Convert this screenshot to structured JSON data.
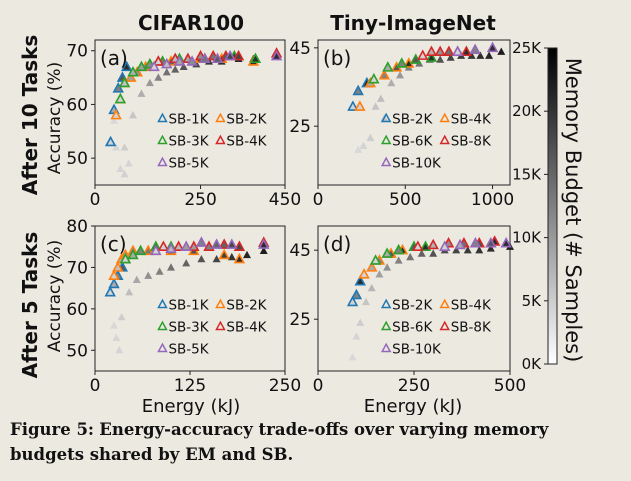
{
  "figure": {
    "column_titles": [
      "CIFAR100",
      "Tiny-ImageNet"
    ],
    "row_titles": [
      "After 10 Tasks",
      "After 5 Tasks"
    ],
    "ylabel": "Accuracy (%)",
    "xlabel": "Energy (kJ)",
    "colorbar": {
      "label": "Memory Budget (# Samples)",
      "ticks": [
        "0K",
        "5K",
        "10K",
        "15K",
        "20K",
        "25K"
      ],
      "range": [
        0,
        25000
      ],
      "colormap": [
        "#ffffff",
        "#000000"
      ]
    }
  },
  "caption": {
    "label": "Figure 5:",
    "text": "Energy-accuracy trade-offs over varying memory budgets shared by EM and SB."
  },
  "chart_data": [
    {
      "id": "a",
      "panel_label": "(a)",
      "type": "scatter",
      "title": "CIFAR100",
      "row": "After 10 Tasks",
      "xlabel": "",
      "ylabel": "Accuracy (%)",
      "xlim": [
        0,
        450
      ],
      "ylim": [
        45,
        72
      ],
      "xticks": [
        "0",
        "250",
        "450"
      ],
      "xtick_values": [
        0,
        250,
        450
      ],
      "yticks": [
        "50",
        "60",
        "70"
      ],
      "ytick_values": [
        50,
        60,
        70
      ],
      "legend": {
        "placement": "bottom-right",
        "columns": 2
      },
      "series": [
        {
          "name": "SB-1K",
          "color": "#1f77b4",
          "points": [
            [
              37,
              53
            ],
            [
              45,
              59
            ],
            [
              55,
              63
            ],
            [
              65,
              65
            ],
            [
              75,
              67
            ]
          ]
        },
        {
          "name": "SB-2K",
          "color": "#ff7f0e",
          "points": [
            [
              50,
              58
            ],
            [
              60,
              61
            ],
            [
              70,
              64
            ],
            [
              85,
              65
            ],
            [
              100,
              66
            ],
            [
              120,
              67
            ],
            [
              150,
              68
            ],
            [
              180,
              68
            ],
            [
              250,
              68.5
            ],
            [
              300,
              68.5
            ],
            [
              375,
              68
            ]
          ]
        },
        {
          "name": "SB-3K",
          "color": "#2ca02c",
          "points": [
            [
              60,
              61
            ],
            [
              70,
              64
            ],
            [
              90,
              66
            ],
            [
              110,
              67
            ],
            [
              130,
              67.5
            ],
            [
              160,
              68
            ],
            [
              200,
              68.5
            ],
            [
              260,
              68.5
            ],
            [
              330,
              69
            ],
            [
              380,
              68.5
            ]
          ]
        },
        {
          "name": "SB-4K",
          "color": "#d62728",
          "points": [
            [
              150,
              68
            ],
            [
              190,
              68.5
            ],
            [
              220,
              68.5
            ],
            [
              250,
              69
            ],
            [
              280,
              69
            ],
            [
              310,
              69
            ],
            [
              340,
              69
            ],
            [
              430,
              69.5
            ]
          ]
        },
        {
          "name": "SB-5K",
          "color": "#9467bd",
          "points": [
            [
              140,
              67
            ],
            [
              170,
              67.5
            ],
            [
              200,
              68
            ],
            [
              230,
              68
            ],
            [
              260,
              68.5
            ],
            [
              290,
              68.5
            ],
            [
              320,
              69
            ],
            [
              430,
              69
            ]
          ]
        }
      ],
      "em_points": [
        {
          "x": 45,
          "y": 57,
          "budget": 500
        },
        {
          "x": 50,
          "y": 52,
          "budget": 800
        },
        {
          "x": 60,
          "y": 48,
          "budget": 1000
        },
        {
          "x": 70,
          "y": 47,
          "budget": 1500
        },
        {
          "x": 70,
          "y": 52,
          "budget": 2000
        },
        {
          "x": 80,
          "y": 49,
          "budget": 1000
        },
        {
          "x": 90,
          "y": 58,
          "budget": 3000
        },
        {
          "x": 110,
          "y": 62,
          "budget": 6000
        },
        {
          "x": 130,
          "y": 64,
          "budget": 9000
        },
        {
          "x": 150,
          "y": 65,
          "budget": 12000
        },
        {
          "x": 170,
          "y": 66,
          "budget": 14000
        },
        {
          "x": 190,
          "y": 66.5,
          "budget": 16000
        },
        {
          "x": 210,
          "y": 67,
          "budget": 18000
        },
        {
          "x": 240,
          "y": 67.5,
          "budget": 20000
        },
        {
          "x": 270,
          "y": 68,
          "budget": 22000
        },
        {
          "x": 300,
          "y": 68,
          "budget": 23000
        },
        {
          "x": 340,
          "y": 68.5,
          "budget": 24000
        },
        {
          "x": 375,
          "y": 68.5,
          "budget": 25000
        }
      ]
    },
    {
      "id": "b",
      "panel_label": "(b)",
      "type": "scatter",
      "title": "Tiny-ImageNet",
      "row": "After 10 Tasks",
      "xlabel": "",
      "ylabel": "",
      "xlim": [
        0,
        1100
      ],
      "ylim": [
        10,
        47
      ],
      "xticks": [
        "0",
        "500",
        "1000"
      ],
      "xtick_values": [
        0,
        500,
        1000
      ],
      "yticks": [
        "25",
        "45"
      ],
      "ytick_values": [
        25,
        45
      ],
      "legend": {
        "placement": "bottom-right",
        "columns": 2
      },
      "series": [
        {
          "name": "SB-2K",
          "color": "#1f77b4",
          "points": [
            [
              200,
              30
            ],
            [
              230,
              34
            ],
            [
              280,
              36
            ]
          ]
        },
        {
          "name": "SB-4K",
          "color": "#ff7f0e",
          "points": [
            [
              240,
              30
            ],
            [
              300,
              36
            ],
            [
              380,
              38
            ],
            [
              450,
              40
            ],
            [
              520,
              41
            ]
          ]
        },
        {
          "name": "SB-6K",
          "color": "#2ca02c",
          "points": [
            [
              320,
              37
            ],
            [
              400,
              40
            ],
            [
              480,
              41
            ],
            [
              560,
              42
            ],
            [
              650,
              42.5
            ]
          ]
        },
        {
          "name": "SB-8K",
          "color": "#d62728",
          "points": [
            [
              600,
              43
            ],
            [
              650,
              44
            ],
            [
              700,
              44
            ],
            [
              750,
              44
            ],
            [
              800,
              44
            ],
            [
              850,
              44
            ]
          ]
        },
        {
          "name": "SB-10K",
          "color": "#9467bd",
          "points": [
            [
              800,
              44
            ],
            [
              900,
              44.5
            ],
            [
              1000,
              45
            ]
          ]
        }
      ],
      "em_points": [
        {
          "x": 230,
          "y": 19,
          "budget": 500
        },
        {
          "x": 260,
          "y": 20,
          "budget": 1000
        },
        {
          "x": 300,
          "y": 22,
          "budget": 2000
        },
        {
          "x": 330,
          "y": 30,
          "budget": 3000
        },
        {
          "x": 360,
          "y": 32,
          "budget": 4000
        },
        {
          "x": 380,
          "y": 27,
          "budget": 3000
        },
        {
          "x": 420,
          "y": 36,
          "budget": 6000
        },
        {
          "x": 470,
          "y": 38,
          "budget": 9000
        },
        {
          "x": 520,
          "y": 40,
          "budget": 12000
        },
        {
          "x": 580,
          "y": 41,
          "budget": 14000
        },
        {
          "x": 640,
          "y": 42,
          "budget": 16000
        },
        {
          "x": 700,
          "y": 42,
          "budget": 18000
        },
        {
          "x": 760,
          "y": 42.5,
          "budget": 20000
        },
        {
          "x": 820,
          "y": 43,
          "budget": 21000
        },
        {
          "x": 880,
          "y": 43,
          "budget": 22000
        },
        {
          "x": 930,
          "y": 43,
          "budget": 23000
        },
        {
          "x": 980,
          "y": 43,
          "budget": 24000
        },
        {
          "x": 1050,
          "y": 44,
          "budget": 25000
        }
      ]
    },
    {
      "id": "c",
      "panel_label": "(c)",
      "type": "scatter",
      "title": "CIFAR100",
      "row": "After 5 Tasks",
      "xlabel": "Energy (kJ)",
      "ylabel": "Accuracy (%)",
      "xlim": [
        0,
        250
      ],
      "ylim": [
        45,
        80
      ],
      "xticks": [
        "0",
        "125",
        "250"
      ],
      "xtick_values": [
        0,
        125,
        250
      ],
      "yticks": [
        "50",
        "60",
        "70",
        "80"
      ],
      "ytick_values": [
        50,
        60,
        70,
        80
      ],
      "legend": {
        "placement": "bottom-right",
        "columns": 2
      },
      "series": [
        {
          "name": "SB-1K",
          "color": "#1f77b4",
          "points": [
            [
              20,
              64
            ],
            [
              25,
              66
            ],
            [
              30,
              68
            ],
            [
              36,
              70
            ],
            [
              40,
              72
            ]
          ]
        },
        {
          "name": "SB-2K",
          "color": "#ff7f0e",
          "points": [
            [
              25,
              68
            ],
            [
              30,
              70
            ],
            [
              35,
              72
            ],
            [
              40,
              73
            ],
            [
              50,
              74
            ],
            [
              70,
              74
            ],
            [
              100,
              74
            ],
            [
              130,
              74
            ],
            [
              170,
              73
            ],
            [
              190,
              72
            ]
          ]
        },
        {
          "name": "SB-3K",
          "color": "#2ca02c",
          "points": [
            [
              40,
              72
            ],
            [
              50,
              73
            ],
            [
              60,
              74
            ],
            [
              80,
              75
            ],
            [
              100,
              75
            ]
          ]
        },
        {
          "name": "SB-4K",
          "color": "#d62728",
          "points": [
            [
              90,
              75
            ],
            [
              110,
              75
            ],
            [
              130,
              75
            ],
            [
              150,
              75
            ],
            [
              170,
              75.5
            ],
            [
              190,
              75
            ],
            [
              222,
              76
            ]
          ]
        },
        {
          "name": "SB-5K",
          "color": "#9467bd",
          "points": [
            [
              80,
              74
            ],
            [
              100,
              74.5
            ],
            [
              120,
              75
            ],
            [
              140,
              76
            ],
            [
              160,
              75.5
            ],
            [
              180,
              75.5
            ],
            [
              222,
              75.5
            ]
          ]
        }
      ],
      "em_points": [
        {
          "x": 25,
          "y": 56,
          "budget": 500
        },
        {
          "x": 28,
          "y": 53,
          "budget": 800
        },
        {
          "x": 32,
          "y": 50,
          "budget": 1000
        },
        {
          "x": 35,
          "y": 58,
          "budget": 2000
        },
        {
          "x": 45,
          "y": 64,
          "budget": 4000
        },
        {
          "x": 55,
          "y": 67,
          "budget": 7000
        },
        {
          "x": 70,
          "y": 68,
          "budget": 10000
        },
        {
          "x": 85,
          "y": 69,
          "budget": 12000
        },
        {
          "x": 100,
          "y": 70,
          "budget": 14000
        },
        {
          "x": 120,
          "y": 71,
          "budget": 16000
        },
        {
          "x": 140,
          "y": 72,
          "budget": 18000
        },
        {
          "x": 160,
          "y": 72,
          "budget": 20000
        },
        {
          "x": 180,
          "y": 72.5,
          "budget": 22000
        },
        {
          "x": 200,
          "y": 73,
          "budget": 24000
        },
        {
          "x": 222,
          "y": 74,
          "budget": 25000
        }
      ]
    },
    {
      "id": "d",
      "panel_label": "(d)",
      "type": "scatter",
      "title": "Tiny-ImageNet",
      "row": "After 5 Tasks",
      "xlabel": "Energy (kJ)",
      "ylabel": "",
      "xlim": [
        0,
        500
      ],
      "ylim": [
        10,
        52
      ],
      "xticks": [
        "0",
        "250",
        "500"
      ],
      "xtick_values": [
        0,
        250,
        500
      ],
      "yticks": [
        "25",
        "45"
      ],
      "ytick_values": [
        25,
        45
      ],
      "legend": {
        "placement": "bottom-right",
        "columns": 2
      },
      "series": [
        {
          "name": "SB-2K",
          "color": "#1f77b4",
          "points": [
            [
              90,
              30
            ],
            [
              100,
              32
            ],
            [
              110,
              36
            ]
          ]
        },
        {
          "name": "SB-4K",
          "color": "#ff7f0e",
          "points": [
            [
              120,
              38
            ],
            [
              140,
              40
            ],
            [
              160,
              42
            ],
            [
              190,
              44
            ],
            [
              220,
              45
            ]
          ]
        },
        {
          "name": "SB-6K",
          "color": "#2ca02c",
          "points": [
            [
              150,
              42
            ],
            [
              180,
              44
            ],
            [
              210,
              45
            ],
            [
              250,
              46
            ],
            [
              280,
              46
            ]
          ]
        },
        {
          "name": "SB-8K",
          "color": "#d62728",
          "points": [
            [
              260,
              46
            ],
            [
              300,
              46.5
            ],
            [
              340,
              47
            ],
            [
              380,
              47
            ],
            [
              420,
              47
            ],
            [
              460,
              47.5
            ]
          ]
        },
        {
          "name": "SB-10K",
          "color": "#9467bd",
          "points": [
            [
              330,
              46
            ],
            [
              370,
              46.5
            ],
            [
              410,
              47
            ],
            [
              450,
              47
            ],
            [
              490,
              47
            ]
          ]
        }
      ],
      "em_points": [
        {
          "x": 90,
          "y": 14,
          "budget": 500
        },
        {
          "x": 100,
          "y": 20,
          "budget": 1000
        },
        {
          "x": 110,
          "y": 24,
          "budget": 2000
        },
        {
          "x": 125,
          "y": 30,
          "budget": 3000
        },
        {
          "x": 140,
          "y": 34,
          "budget": 5000
        },
        {
          "x": 160,
          "y": 38,
          "budget": 8000
        },
        {
          "x": 180,
          "y": 40,
          "budget": 10000
        },
        {
          "x": 210,
          "y": 42,
          "budget": 12000
        },
        {
          "x": 240,
          "y": 43,
          "budget": 14000
        },
        {
          "x": 270,
          "y": 44,
          "budget": 16000
        },
        {
          "x": 300,
          "y": 44,
          "budget": 18000
        },
        {
          "x": 330,
          "y": 45,
          "budget": 19000
        },
        {
          "x": 360,
          "y": 45,
          "budget": 20000
        },
        {
          "x": 390,
          "y": 45,
          "budget": 21000
        },
        {
          "x": 420,
          "y": 45,
          "budget": 22000
        },
        {
          "x": 450,
          "y": 45.5,
          "budget": 23000
        },
        {
          "x": 500,
          "y": 46,
          "budget": 25000
        }
      ]
    }
  ]
}
